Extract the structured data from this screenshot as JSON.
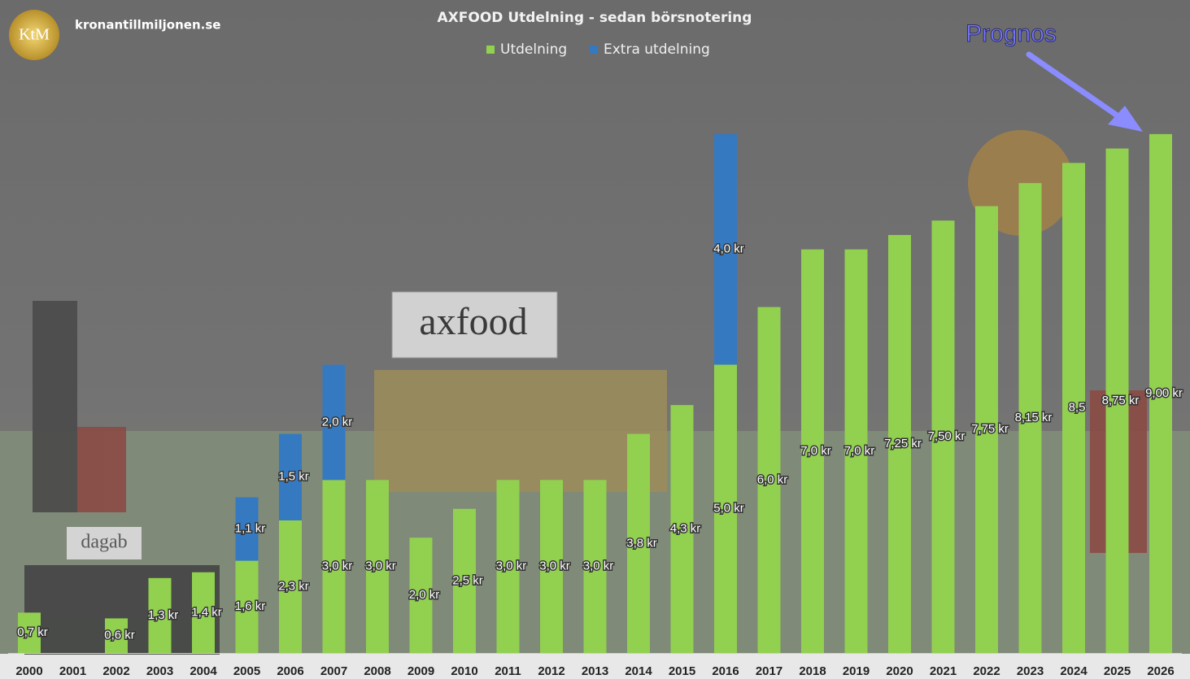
{
  "chart_data": {
    "type": "stacked_bar",
    "brand": "kronantillmiljonen.se",
    "logo": "KtM",
    "title": "AXFOOD Utdelning - sedan börsnotering",
    "annotation": "Prognos",
    "background_labels": [
      "axfood",
      "dagab"
    ],
    "categories": [
      "2000",
      "2001",
      "2002",
      "2003",
      "2004",
      "2005",
      "2006",
      "2007",
      "2008",
      "2009",
      "2010",
      "2011",
      "2012",
      "2013",
      "2014",
      "2015",
      "2016",
      "2017",
      "2018",
      "2019",
      "2020",
      "2021",
      "2022",
      "2023",
      "2024",
      "2025",
      "2026"
    ],
    "series": [
      {
        "name": "Utdelning",
        "color": "#92d050",
        "values": [
          0.7,
          null,
          0.6,
          1.3,
          1.4,
          1.6,
          2.3,
          3.0,
          3.0,
          2.0,
          2.5,
          3.0,
          3.0,
          3.0,
          3.8,
          4.3,
          5.0,
          6.0,
          7.0,
          7.0,
          7.25,
          7.5,
          7.75,
          8.15,
          8.5,
          8.75,
          9.0
        ],
        "value_labels": [
          "0,7 kr",
          null,
          "0,6 kr",
          "1,3 kr",
          "1,4 kr",
          "1,6 kr",
          "2,3 kr",
          "3,0 kr",
          "3,0 kr",
          "2,0 kr",
          "2,5 kr",
          "3,0 kr",
          "3,0 kr",
          "3,0 kr",
          "3,8 kr",
          "4,3 kr",
          "5,0 kr",
          "6,0 kr",
          "7,0 kr",
          "7,0 kr",
          "7,25 kr",
          "7,50 kr",
          "7,75 kr",
          "8,15 kr",
          "8,5",
          "8,75 kr",
          "9,00 kr"
        ]
      },
      {
        "name": "Extra utdelning",
        "color": "#3579c0",
        "values": [
          null,
          null,
          null,
          null,
          null,
          1.1,
          1.5,
          2.0,
          null,
          null,
          null,
          null,
          null,
          null,
          null,
          null,
          4.0,
          null,
          null,
          null,
          null,
          null,
          null,
          null,
          null,
          null,
          null
        ],
        "value_labels": [
          null,
          null,
          null,
          null,
          null,
          "1,1 kr",
          "1,5 kr",
          "2,0 kr",
          null,
          null,
          null,
          null,
          null,
          null,
          null,
          null,
          "4,0 kr",
          null,
          null,
          null,
          null,
          null,
          null,
          null,
          null,
          null,
          null
        ]
      }
    ],
    "ylim": [
      0,
      10
    ]
  }
}
